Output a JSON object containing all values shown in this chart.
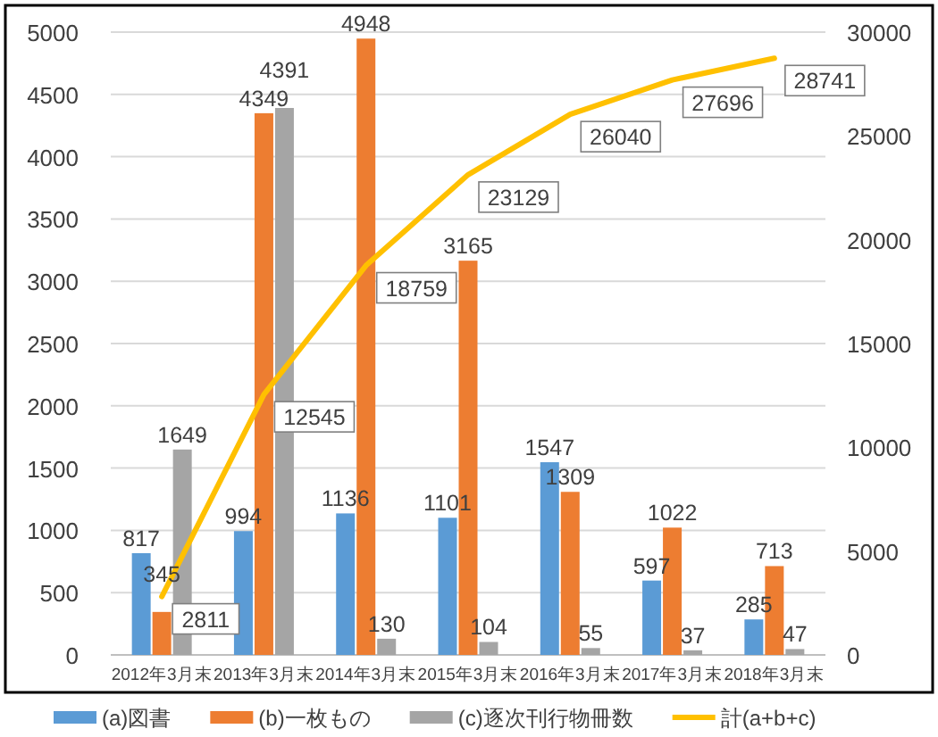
{
  "chart_data": {
    "type": "bar",
    "categories": [
      "2012年3月末",
      "2013年3月末",
      "2014年3月末",
      "2015年3月末",
      "2016年3月末",
      "2017年3月末",
      "2018年3月末"
    ],
    "series": [
      {
        "name": "(a)図書",
        "color": "#5b9bd5",
        "values": [
          817,
          994,
          1136,
          1101,
          1547,
          597,
          285
        ]
      },
      {
        "name": "(b)一枚もの",
        "color": "#ed7d31",
        "values": [
          345,
          4349,
          4948,
          3165,
          1309,
          1022,
          713
        ]
      },
      {
        "name": "(c)逐次刊行物冊数",
        "color": "#a5a5a5",
        "values": [
          1649,
          4391,
          130,
          104,
          55,
          37,
          47
        ]
      },
      {
        "name": "計(a+b+c)",
        "type": "line",
        "axis": "y2",
        "color": "#ffc000",
        "values": [
          2811,
          12545,
          18759,
          23129,
          26040,
          27696,
          28741
        ]
      }
    ],
    "ylim": [
      0,
      5000
    ],
    "yticks": [
      0,
      500,
      1000,
      1500,
      2000,
      2500,
      3000,
      3500,
      4000,
      4500,
      5000
    ],
    "y2lim": [
      0,
      30000
    ],
    "y2ticks": [
      0,
      5000,
      10000,
      15000,
      20000,
      25000,
      30000
    ],
    "grid": "y",
    "legend": "bottom",
    "data_labels": true
  }
}
